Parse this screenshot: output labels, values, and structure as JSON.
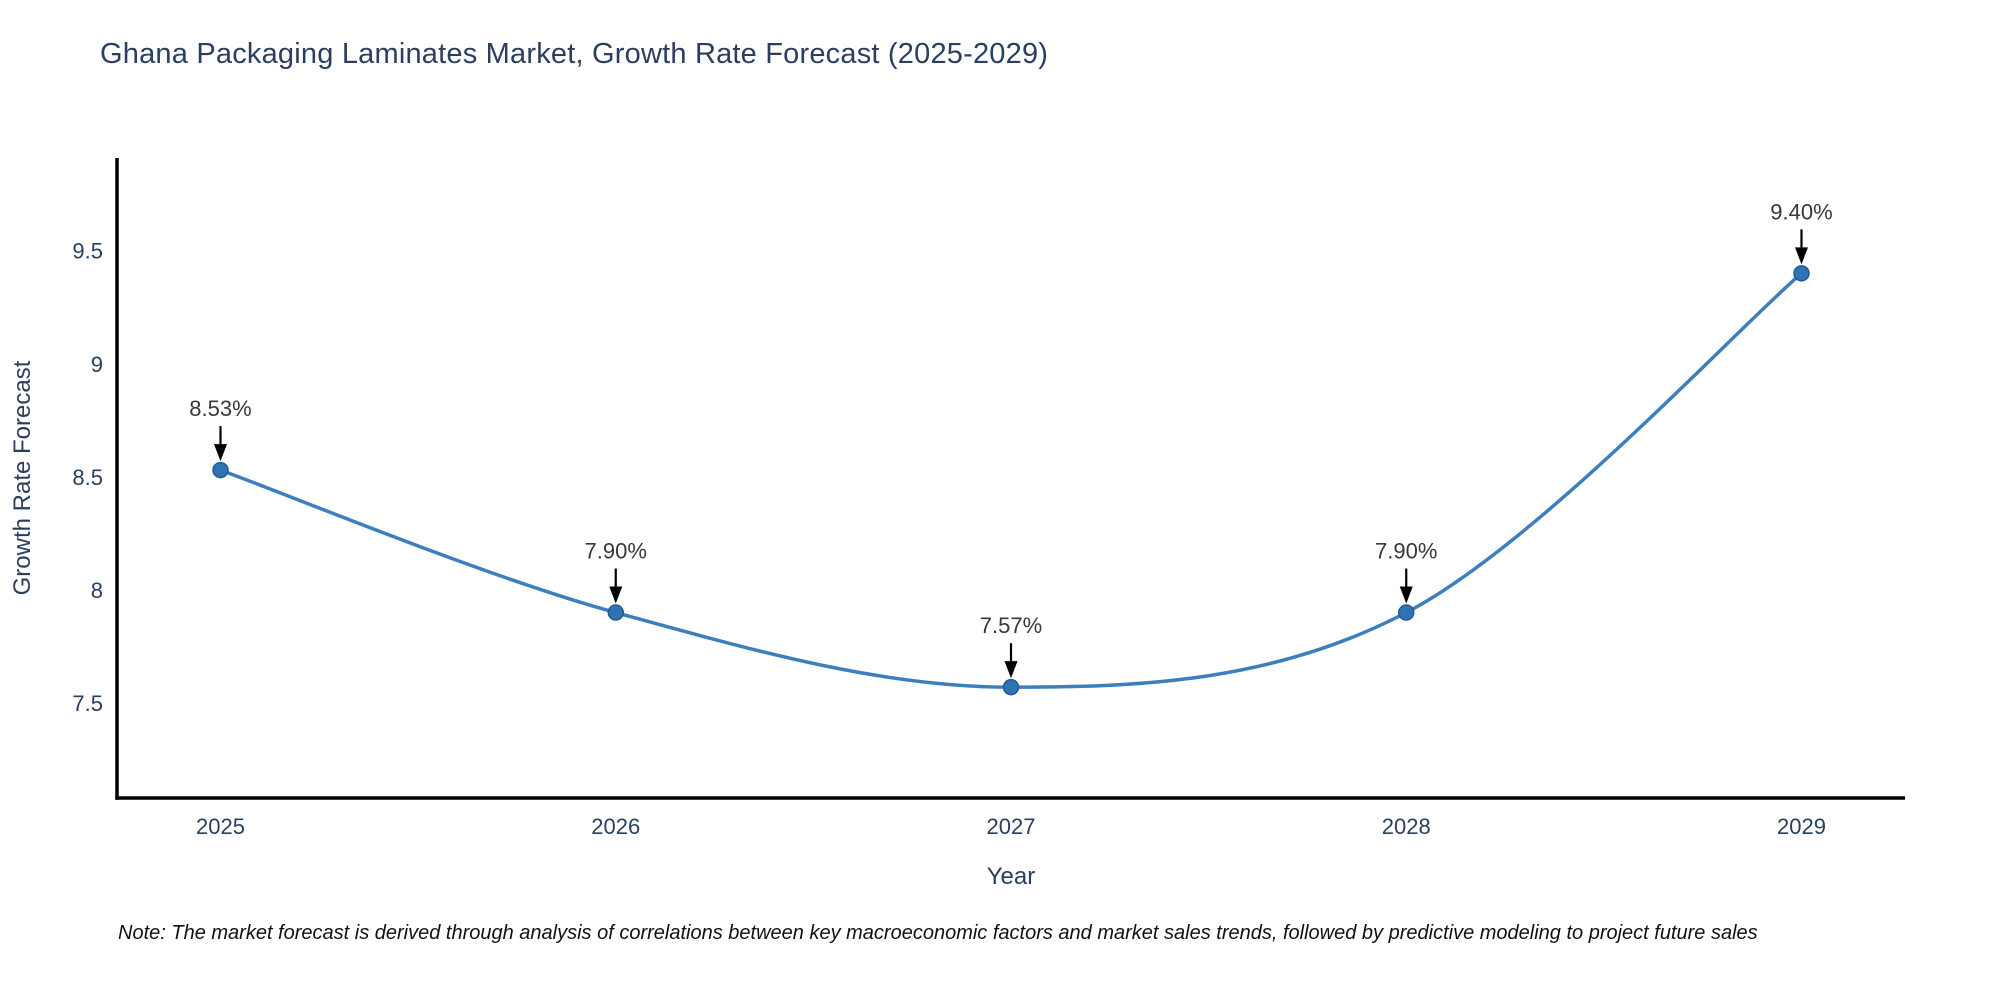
{
  "page": {
    "background": "#ffffff"
  },
  "chart": {
    "note": "Note: The market forecast is derived through analysis of correlations between key macroeconomic factors and market sales trends, followed by predictive modeling to project future sales",
    "colors": {
      "line": "#3d7ebd",
      "marker_fill": "#2f73b2",
      "marker_edge": "#1f5c94",
      "arrow": "#000000",
      "axis_line": "#000000",
      "axis_text": "#2a3f5f",
      "annotation_text": "#383838"
    }
  },
  "chart_data": {
    "type": "line",
    "title": "Ghana Packaging Laminates Market, Growth Rate Forecast (2025-2029)",
    "xlabel": "Year",
    "ylabel": "Growth Rate Forecast",
    "x": [
      "2025",
      "2026",
      "2027",
      "2028",
      "2029"
    ],
    "y": [
      8.53,
      7.9,
      7.57,
      7.9,
      9.4
    ],
    "point_labels": [
      "8.53%",
      "7.90%",
      "7.57%",
      "7.90%",
      "9.40%"
    ],
    "yticks": [
      "7.5",
      "8",
      "8.5",
      "9",
      "9.5"
    ],
    "ytick_values": [
      7.5,
      8,
      8.5,
      9,
      9.5
    ],
    "ylim": [
      7.08,
      9.91
    ],
    "line_shape": "spline",
    "grid": false,
    "legend": "none",
    "annotations": "percentage value labels with downward arrows above each data point"
  }
}
